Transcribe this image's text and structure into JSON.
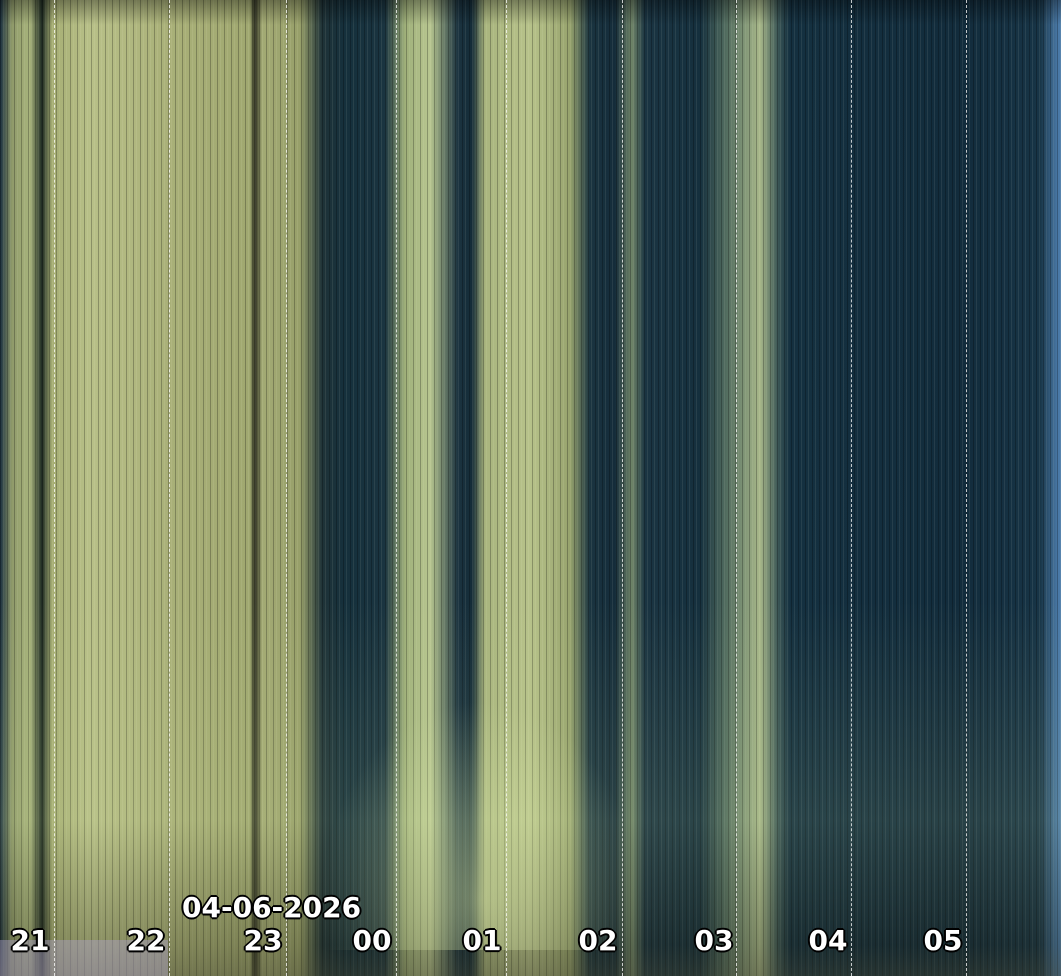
{
  "date_label": "04-06-2026",
  "hours": [
    "21",
    "22",
    "23",
    "00",
    "01",
    "02",
    "03",
    "04",
    "05"
  ]
}
